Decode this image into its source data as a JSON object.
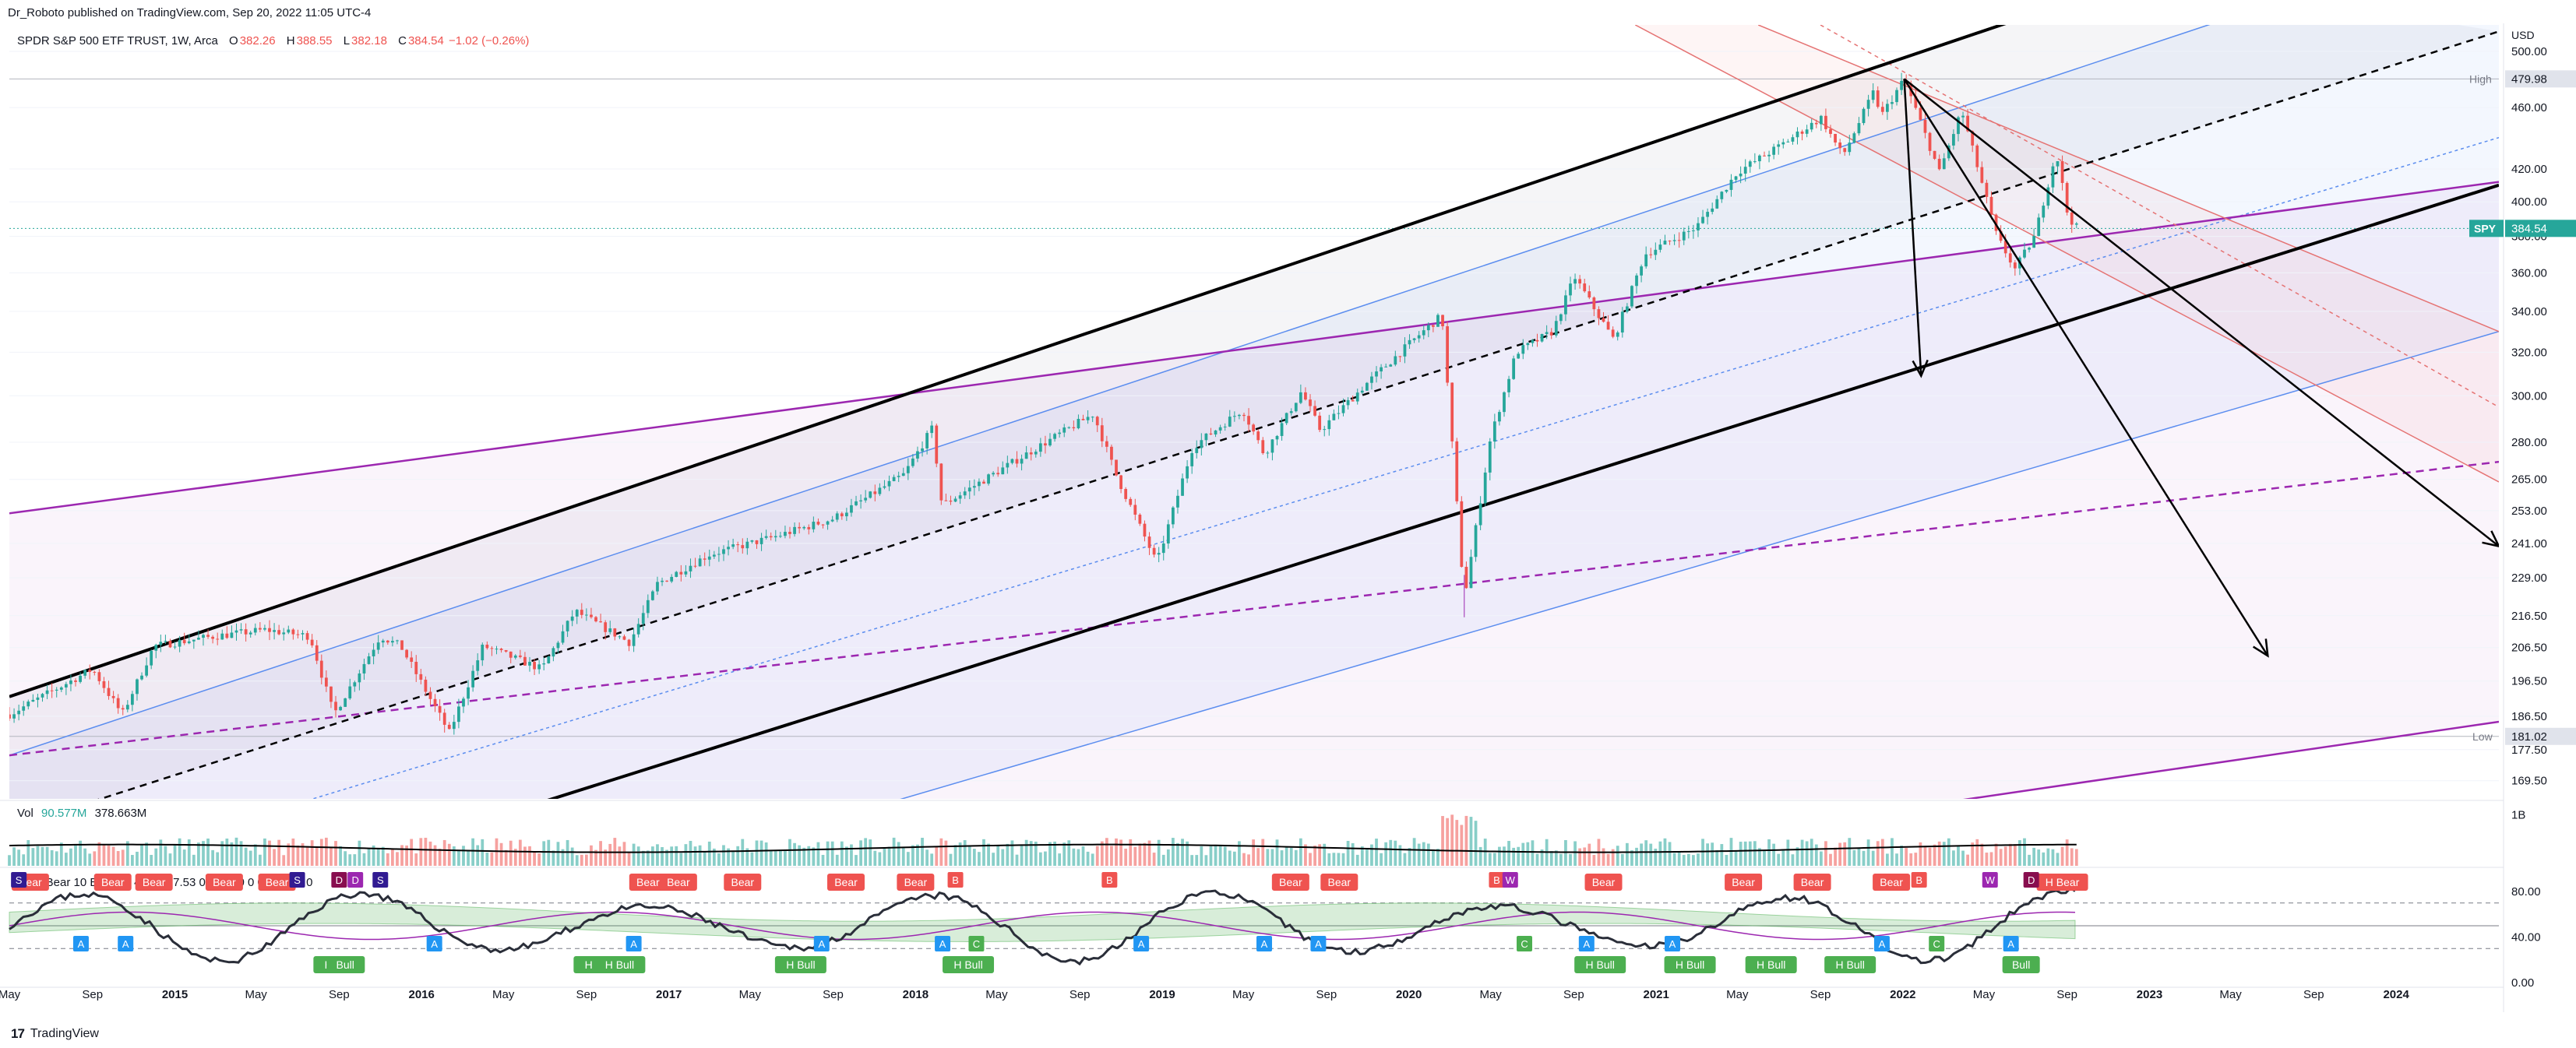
{
  "header": {
    "publisher_line": "Dr_Roboto published on TradingView.com, Sep 20, 2022 11:05 UTC-4"
  },
  "legend": {
    "symbol": "SPDR S&P 500 ETF TRUST, 1W, Arca",
    "open_label": "O",
    "open": "382.26",
    "high_label": "H",
    "high": "388.55",
    "low_label": "L",
    "low": "382.18",
    "close_label": "C",
    "close": "384.54",
    "change": "−1.02 (−0.26%)"
  },
  "volume_legend": {
    "label": "Vol",
    "value": "90.577M",
    "ma": "378.663M"
  },
  "rsi_legend": {
    "text": "cRSI  Bear  10  Bear  72  44.39  37.53  0  0  0  0  0  0  0  0  0  0  0  0"
  },
  "footer": {
    "logo": "17",
    "brand": "TradingView"
  },
  "price_axis": {
    "currency": "USD",
    "high_label": "High",
    "high_value": "479.98",
    "low_label": "Low",
    "low_value": "181.02",
    "symbol_tag": "SPY",
    "last_value": "384.54",
    "last_color": "#26a69a"
  },
  "colors": {
    "up": "#26a69a",
    "down": "#ef5350",
    "channel": "#000000",
    "blue_channel": "#5b8def",
    "purple": "#9c27b0",
    "red_fib": "#e57373"
  },
  "chart_data": [
    {
      "type": "candlestick",
      "title": "",
      "scale": "log",
      "ylim": [
        165,
        520
      ],
      "xlim": [
        "2014-05-01",
        "2024-06-01"
      ],
      "yticks": [
        500,
        460,
        420,
        400,
        380,
        360,
        340,
        320,
        300,
        280,
        265,
        253,
        241,
        229,
        216.5,
        206.5,
        196.5,
        186.5,
        177.5,
        169.5
      ],
      "yticks_text": [
        "500.00",
        "460.00",
        "420.00",
        "400.00",
        "380.00",
        "360.00",
        "340.00",
        "320.00",
        "300.00",
        "280.00",
        "265.00",
        "253.00",
        "241.00",
        "229.00",
        "216.50",
        "206.50",
        "196.50",
        "186.50",
        "177.50",
        "169.50"
      ],
      "xticks": [
        {
          "date": "2014-05-01",
          "label": "May"
        },
        {
          "date": "2014-09-01",
          "label": "Sep"
        },
        {
          "date": "2015-01-01",
          "label": "2015"
        },
        {
          "date": "2015-05-01",
          "label": "May"
        },
        {
          "date": "2015-09-01",
          "label": "Sep"
        },
        {
          "date": "2016-01-01",
          "label": "2016"
        },
        {
          "date": "2016-05-01",
          "label": "May"
        },
        {
          "date": "2016-09-01",
          "label": "Sep"
        },
        {
          "date": "2017-01-01",
          "label": "2017"
        },
        {
          "date": "2017-05-01",
          "label": "May"
        },
        {
          "date": "2017-09-01",
          "label": "Sep"
        },
        {
          "date": "2018-01-01",
          "label": "2018"
        },
        {
          "date": "2018-05-01",
          "label": "May"
        },
        {
          "date": "2018-09-01",
          "label": "Sep"
        },
        {
          "date": "2019-01-01",
          "label": "2019"
        },
        {
          "date": "2019-05-01",
          "label": "May"
        },
        {
          "date": "2019-09-01",
          "label": "Sep"
        },
        {
          "date": "2020-01-01",
          "label": "2020"
        },
        {
          "date": "2020-05-01",
          "label": "May"
        },
        {
          "date": "2020-09-01",
          "label": "Sep"
        },
        {
          "date": "2021-01-01",
          "label": "2021"
        },
        {
          "date": "2021-05-01",
          "label": "May"
        },
        {
          "date": "2021-09-01",
          "label": "Sep"
        },
        {
          "date": "2022-01-01",
          "label": "2022"
        },
        {
          "date": "2022-05-01",
          "label": "May"
        },
        {
          "date": "2022-09-01",
          "label": "Sep"
        },
        {
          "date": "2023-01-01",
          "label": "2023"
        },
        {
          "date": "2023-05-01",
          "label": "May"
        },
        {
          "date": "2023-09-01",
          "label": "Sep"
        },
        {
          "date": "2024-01-01",
          "label": "2024"
        }
      ],
      "price_path": [
        [
          "2014-05-01",
          187
        ],
        [
          "2014-09-01",
          200
        ],
        [
          "2014-10-15",
          187
        ],
        [
          "2014-12-01",
          207
        ],
        [
          "2015-03-01",
          210
        ],
        [
          "2015-05-15",
          212
        ],
        [
          "2015-07-20",
          210
        ],
        [
          "2015-08-24",
          187
        ],
        [
          "2015-11-01",
          210
        ],
        [
          "2015-12-01",
          207
        ],
        [
          "2016-02-11",
          182
        ],
        [
          "2016-04-01",
          207
        ],
        [
          "2016-06-27",
          200
        ],
        [
          "2016-08-15",
          218
        ],
        [
          "2016-11-04",
          208
        ],
        [
          "2016-12-15",
          227
        ],
        [
          "2017-03-01",
          237
        ],
        [
          "2017-06-01",
          243
        ],
        [
          "2017-09-01",
          250
        ],
        [
          "2017-12-15",
          267
        ],
        [
          "2018-01-26",
          286
        ],
        [
          "2018-02-09",
          255
        ],
        [
          "2018-04-01",
          263
        ],
        [
          "2018-07-01",
          278
        ],
        [
          "2018-09-21",
          292
        ],
        [
          "2018-10-26",
          266
        ],
        [
          "2018-12-24",
          234
        ],
        [
          "2019-02-15",
          278
        ],
        [
          "2019-04-30",
          294
        ],
        [
          "2019-06-01",
          275
        ],
        [
          "2019-07-26",
          302
        ],
        [
          "2019-08-23",
          285
        ],
        [
          "2019-11-01",
          306
        ],
        [
          "2020-01-15",
          328
        ],
        [
          "2020-02-19",
          338
        ],
        [
          "2020-03-23",
          222
        ],
        [
          "2020-05-01",
          282
        ],
        [
          "2020-06-08",
          320
        ],
        [
          "2020-08-01",
          330
        ],
        [
          "2020-09-02",
          358
        ],
        [
          "2020-10-30",
          326
        ],
        [
          "2020-12-15",
          370
        ],
        [
          "2021-03-01",
          385
        ],
        [
          "2021-05-01",
          418
        ],
        [
          "2021-07-01",
          434
        ],
        [
          "2021-09-02",
          453
        ],
        [
          "2021-10-04",
          428
        ],
        [
          "2021-11-18",
          470
        ],
        [
          "2021-12-01",
          455
        ],
        [
          "2022-01-03",
          479.98
        ],
        [
          "2022-02-24",
          418
        ],
        [
          "2022-03-29",
          458
        ],
        [
          "2022-05-20",
          380
        ],
        [
          "2022-06-16",
          362
        ],
        [
          "2022-07-15",
          380
        ],
        [
          "2022-08-16",
          431
        ],
        [
          "2022-09-02",
          392
        ],
        [
          "2022-09-16",
          384.54
        ]
      ],
      "annotations": {
        "black_channel_upper": [
          [
            "2014-05-01",
            192
          ],
          [
            "2023-01-01",
            560
          ]
        ],
        "black_channel_lower": [
          [
            "2014-05-01",
            128
          ],
          [
            "2024-06-01",
            410
          ]
        ],
        "black_midline": [
          [
            "2014-05-01",
            158
          ],
          [
            "2024-06-01",
            515
          ]
        ],
        "blue_upper": [
          [
            "2014-05-01",
            176
          ],
          [
            "2024-06-01",
            600
          ]
        ],
        "blue_lower": [
          [
            "2014-05-01",
            112
          ],
          [
            "2024-06-01",
            330
          ]
        ],
        "blue_dotted": [
          [
            "2014-05-01",
            144
          ],
          [
            "2024-06-01",
            440
          ]
        ],
        "purple_upper": [
          [
            "2014-05-01",
            252
          ],
          [
            "2024-06-01",
            412
          ]
        ],
        "purple_dashed": [
          [
            "2014-05-01",
            176
          ],
          [
            "2024-06-01",
            272
          ]
        ],
        "purple_lower": [
          [
            "2014-05-01",
            108
          ],
          [
            "2024-06-01",
            185
          ]
        ],
        "red_line_1": [
          [
            "2020-12-01",
            520
          ],
          [
            "2024-06-01",
            264
          ]
        ],
        "red_line_2": [
          [
            "2021-06-01",
            520
          ],
          [
            "2024-06-01",
            330
          ]
        ],
        "red_dashed": [
          [
            "2021-09-01",
            520
          ],
          [
            "2024-06-01",
            295
          ]
        ],
        "arrow_1": [
          [
            "2022-01-03",
            479.98
          ],
          [
            "2022-01-28",
            309
          ]
        ],
        "arrow_2": [
          [
            "2022-01-03",
            479.98
          ],
          [
            "2023-06-25",
            204
          ]
        ],
        "arrow_3": [
          [
            "2022-01-03",
            479.98
          ],
          [
            "2024-06-01",
            240
          ]
        ],
        "vertical_line": [
          [
            "2020-03-23",
            216
          ],
          [
            "2020-03-23",
            230
          ]
        ]
      }
    },
    {
      "type": "bar",
      "title": "",
      "series_name": "Vol",
      "x_range": [
        "2014-05-01",
        "2022-09-16"
      ],
      "typical_volume_M": 380,
      "spike_2020_03_M": 1100,
      "ma_M": 378.663,
      "yticks_text": [
        "1B"
      ]
    },
    {
      "type": "line",
      "title": "",
      "series_name": "cRSI",
      "ylim": [
        0,
        100
      ],
      "yticks": [
        80,
        40,
        0
      ],
      "yticks_text": [
        "80.00",
        "40.00",
        "0.00"
      ],
      "upper_band": 70,
      "lower_band": 30,
      "signals": [
        {
          "date": "2014-06-01",
          "text": "Bear",
          "pos": "top"
        },
        {
          "date": "2014-10-01",
          "text": "Bear",
          "pos": "top"
        },
        {
          "date": "2014-12-01",
          "text": "Bear",
          "pos": "top"
        },
        {
          "date": "2015-03-15",
          "text": "Bear",
          "pos": "top"
        },
        {
          "date": "2015-06-01",
          "text": "Bear",
          "pos": "top"
        },
        {
          "date": "2016-12-01",
          "text": "Bear",
          "pos": "top"
        },
        {
          "date": "2017-01-15",
          "text": "Bear",
          "pos": "top"
        },
        {
          "date": "2017-04-20",
          "text": "Bear",
          "pos": "top"
        },
        {
          "date": "2017-09-20",
          "text": "Bear",
          "pos": "top"
        },
        {
          "date": "2018-01-01",
          "text": "Bear",
          "pos": "top"
        },
        {
          "date": "2019-07-10",
          "text": "Bear",
          "pos": "top"
        },
        {
          "date": "2019-09-20",
          "text": "Bear",
          "pos": "top"
        },
        {
          "date": "2020-10-15",
          "text": "Bear",
          "pos": "top"
        },
        {
          "date": "2021-05-10",
          "text": "Bear",
          "pos": "top"
        },
        {
          "date": "2021-08-20",
          "text": "Bear",
          "pos": "top"
        },
        {
          "date": "2021-12-15",
          "text": "Bear",
          "pos": "top"
        },
        {
          "date": "2022-08-25",
          "text": "H Bear",
          "pos": "top"
        },
        {
          "date": "2015-09-01",
          "text": "H Bull",
          "pos": "bottom"
        },
        {
          "date": "2016-09-20",
          "text": "H Bull",
          "pos": "bottom"
        },
        {
          "date": "2016-10-20",
          "text": "H Bull",
          "pos": "bottom"
        },
        {
          "date": "2017-07-15",
          "text": "H Bull",
          "pos": "bottom"
        },
        {
          "date": "2018-03-20",
          "text": "H Bull",
          "pos": "bottom"
        },
        {
          "date": "2020-10-10",
          "text": "H Bull",
          "pos": "bottom"
        },
        {
          "date": "2021-02-20",
          "text": "H Bull",
          "pos": "bottom"
        },
        {
          "date": "2021-06-20",
          "text": "H Bull",
          "pos": "bottom"
        },
        {
          "date": "2021-10-15",
          "text": "H Bull",
          "pos": "bottom"
        },
        {
          "date": "2022-06-25",
          "text": "Bull",
          "pos": "bottom"
        },
        {
          "date": "2015-09-10",
          "text": "Bull",
          "pos": "bottom"
        }
      ],
      "letters": [
        {
          "date": "2014-05-15",
          "text": "S",
          "color": "#311b92"
        },
        {
          "date": "2014-08-15",
          "text": "A",
          "color": "#2196f3",
          "pos": "bottom"
        },
        {
          "date": "2014-10-20",
          "text": "A",
          "color": "#2196f3",
          "pos": "bottom"
        },
        {
          "date": "2015-07-01",
          "text": "S",
          "color": "#311b92"
        },
        {
          "date": "2015-09-01",
          "text": "D",
          "color": "#880e4f"
        },
        {
          "date": "2015-09-25",
          "text": "D",
          "color": "#9c27b0"
        },
        {
          "date": "2015-11-01",
          "text": "S",
          "color": "#311b92"
        },
        {
          "date": "2016-01-20",
          "text": "A",
          "color": "#2196f3",
          "pos": "bottom"
        },
        {
          "date": "2016-11-10",
          "text": "A",
          "color": "#2196f3",
          "pos": "bottom"
        },
        {
          "date": "2017-08-15",
          "text": "A",
          "color": "#2196f3",
          "pos": "bottom"
        },
        {
          "date": "2018-02-10",
          "text": "A",
          "color": "#2196f3",
          "pos": "bottom"
        },
        {
          "date": "2018-03-01",
          "text": "B",
          "color": "#ef5350"
        },
        {
          "date": "2018-04-01",
          "text": "C",
          "color": "#4caf50",
          "pos": "bottom"
        },
        {
          "date": "2018-12-01",
          "text": "A",
          "color": "#2196f3",
          "pos": "bottom"
        },
        {
          "date": "2018-10-15",
          "text": "B",
          "color": "#ef5350"
        },
        {
          "date": "2019-06-01",
          "text": "A",
          "color": "#2196f3",
          "pos": "bottom"
        },
        {
          "date": "2019-08-20",
          "text": "A",
          "color": "#2196f3",
          "pos": "bottom"
        },
        {
          "date": "2020-05-10",
          "text": "B",
          "color": "#ef5350"
        },
        {
          "date": "2020-05-30",
          "text": "W",
          "color": "#9c27b0"
        },
        {
          "date": "2020-06-20",
          "text": "C",
          "color": "#4caf50",
          "pos": "bottom"
        },
        {
          "date": "2020-09-20",
          "text": "A",
          "color": "#2196f3",
          "pos": "bottom"
        },
        {
          "date": "2021-01-25",
          "text": "A",
          "color": "#2196f3",
          "pos": "bottom"
        },
        {
          "date": "2021-12-01",
          "text": "A",
          "color": "#2196f3",
          "pos": "bottom"
        },
        {
          "date": "2022-01-25",
          "text": "B",
          "color": "#ef5350"
        },
        {
          "date": "2022-02-20",
          "text": "C",
          "color": "#4caf50",
          "pos": "bottom"
        },
        {
          "date": "2022-06-10",
          "text": "A",
          "color": "#2196f3",
          "pos": "bottom"
        },
        {
          "date": "2022-07-10",
          "text": "D",
          "color": "#880e4f"
        },
        {
          "date": "2022-05-10",
          "text": "W",
          "color": "#9c27b0"
        }
      ]
    }
  ]
}
